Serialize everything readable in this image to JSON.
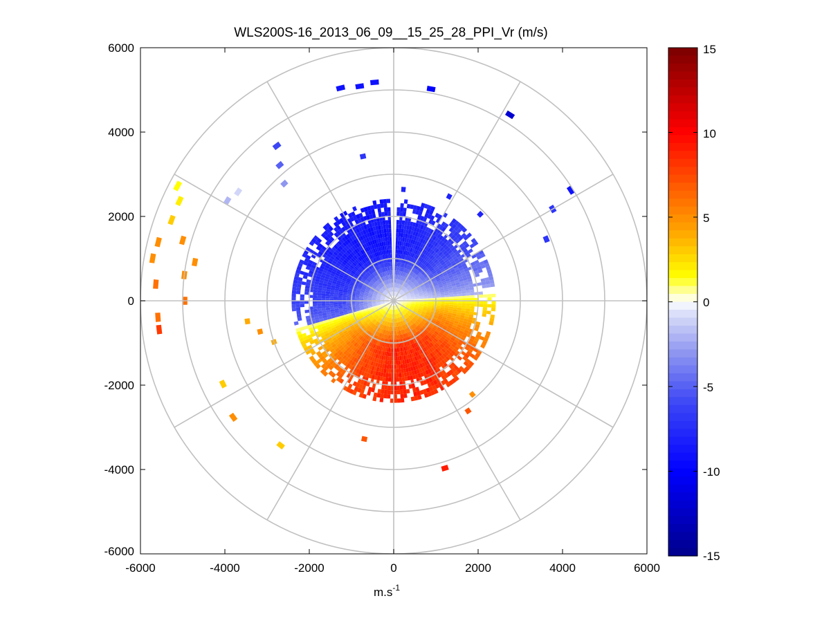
{
  "chart_data": {
    "type": "heatmap",
    "subtype": "polar-ppi",
    "title": "WLS200S-16_2013_06_09__15_25_28_PPI_Vr (m/s)",
    "xlabel": "m.s",
    "xlabel_sup": "-1",
    "ylabel": "",
    "xlim": [
      -6000,
      6000
    ],
    "ylim": [
      -6000,
      6000
    ],
    "x_ticks": [
      -6000,
      -4000,
      -2000,
      0,
      2000,
      4000,
      6000
    ],
    "y_ticks": [
      6000,
      4000,
      2000,
      0,
      -2000,
      -4000,
      -6000
    ],
    "x_tick_labels": [
      "-6000",
      "-4000",
      "-2000",
      "0",
      "2000",
      "4000",
      "6000"
    ],
    "y_tick_labels": [
      "6000",
      "4000",
      "2000",
      "0",
      "-2000",
      "-4000",
      "-6000"
    ],
    "range_rings": [
      1000,
      2000,
      3000,
      4000,
      5000,
      6000
    ],
    "spoke_angles_deg": [
      0,
      30,
      60,
      90,
      120,
      150,
      180,
      210,
      240,
      270,
      300,
      330
    ],
    "colorbar": {
      "range": [
        -15,
        15
      ],
      "tick_values": [
        15,
        10,
        5,
        0,
        -5,
        -10,
        -15
      ],
      "tick_labels": [
        "15",
        "10",
        "5",
        "0",
        "-5",
        "-10",
        "-15"
      ],
      "colormap": "blue-white-yellow-red",
      "stops": [
        {
          "v": -15,
          "color": "#00008c"
        },
        {
          "v": -10,
          "color": "#0000ff"
        },
        {
          "v": -6,
          "color": "#3c46f5"
        },
        {
          "v": -3,
          "color": "#8e96f0"
        },
        {
          "v": -0.5,
          "color": "#e2e5fa"
        },
        {
          "v": 0,
          "color": "#ffffff"
        },
        {
          "v": 0.5,
          "color": "#ffffb4"
        },
        {
          "v": 1.5,
          "color": "#ffff00"
        },
        {
          "v": 4,
          "color": "#ffaa00"
        },
        {
          "v": 7,
          "color": "#ff5500"
        },
        {
          "v": 10,
          "color": "#ff0000"
        },
        {
          "v": 15,
          "color": "#7a0000"
        }
      ]
    },
    "wind_field": {
      "core_max_range_m": 2400,
      "negative_sector_deg": [
        -105,
        85
      ],
      "notch_azimuth_deg": [
        -1,
        1
      ],
      "peak_abs_velocity_ms": 9.5
    },
    "scattered_returns": [
      {
        "az": -14,
        "r": 5200,
        "v": -9
      },
      {
        "az": -9,
        "r": 5150,
        "v": -9
      },
      {
        "az": -5,
        "r": 5200,
        "v": -9
      },
      {
        "az": 10,
        "r": 5100,
        "v": -10
      },
      {
        "az": 32,
        "r": 5200,
        "v": -12
      },
      {
        "az": 58,
        "r": 4950,
        "v": -9
      },
      {
        "az": -40,
        "r": 4200,
        "v": -5
      },
      {
        "az": -37,
        "r": 4600,
        "v": -6
      },
      {
        "az": -43,
        "r": 3800,
        "v": -3
      },
      {
        "az": -59,
        "r": 4600,
        "v": -2
      },
      {
        "az": -55,
        "r": 4500,
        "v": -1
      },
      {
        "az": -12,
        "r": 3500,
        "v": -7
      },
      {
        "az": 5,
        "r": 2650,
        "v": -8
      },
      {
        "az": 28,
        "r": 2800,
        "v": -8
      },
      {
        "az": 60,
        "r": 4350,
        "v": -7
      },
      {
        "az": 68,
        "r": 3900,
        "v": -7
      },
      {
        "az": 45,
        "r": 2900,
        "v": -8
      },
      {
        "az": -62,
        "r": 5800,
        "v": 1.5
      },
      {
        "az": -65,
        "r": 5600,
        "v": 2
      },
      {
        "az": -70,
        "r": 5600,
        "v": 3
      },
      {
        "az": -76,
        "r": 5750,
        "v": 5
      },
      {
        "az": -80,
        "r": 5800,
        "v": 5
      },
      {
        "az": -86,
        "r": 5650,
        "v": 6
      },
      {
        "az": -94,
        "r": 5600,
        "v": 6
      },
      {
        "az": -97,
        "r": 5600,
        "v": 8
      },
      {
        "az": -74,
        "r": 5200,
        "v": 5
      },
      {
        "az": -79,
        "r": 4800,
        "v": 5
      },
      {
        "az": -83,
        "r": 5000,
        "v": 5
      },
      {
        "az": -90,
        "r": 4950,
        "v": 6
      },
      {
        "az": -98,
        "r": 3500,
        "v": 4
      },
      {
        "az": -103,
        "r": 3250,
        "v": 5
      },
      {
        "az": -109,
        "r": 3000,
        "v": 4
      },
      {
        "az": -116,
        "r": 4500,
        "v": 3
      },
      {
        "az": -126,
        "r": 4700,
        "v": 5
      },
      {
        "az": -142,
        "r": 4350,
        "v": 3
      },
      {
        "az": -168,
        "r": 3350,
        "v": 7
      },
      {
        "az": 163,
        "r": 4150,
        "v": 9
      },
      {
        "az": 146,
        "r": 3150,
        "v": 7
      },
      {
        "az": 140,
        "r": 2900,
        "v": 5
      }
    ]
  }
}
